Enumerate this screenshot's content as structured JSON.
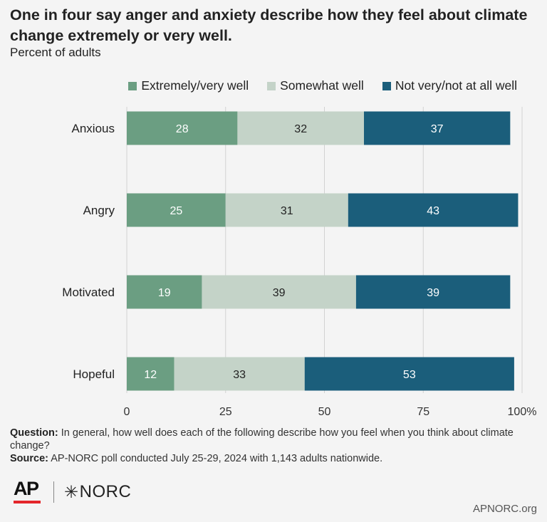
{
  "header": {
    "title": "One in four say anger and anxiety describe how they feel about climate change extremely or very well.",
    "subtitle": "Percent of adults"
  },
  "legend": {
    "items": [
      {
        "label": "Extremely/very well",
        "color": "#6b9e82"
      },
      {
        "label": "Somewhat well",
        "color": "#c4d3c8"
      },
      {
        "label": "Not very/not at all well",
        "color": "#1b5e7b"
      }
    ]
  },
  "chart_data": {
    "type": "bar",
    "orientation": "horizontal",
    "stacked": true,
    "categories": [
      "Anxious",
      "Angry",
      "Motivated",
      "Hopeful"
    ],
    "series": [
      {
        "name": "Extremely/very well",
        "values": [
          28,
          25,
          19,
          12
        ],
        "color": "#6b9e82",
        "label_color": "#ffffff"
      },
      {
        "name": "Somewhat well",
        "values": [
          32,
          31,
          39,
          33
        ],
        "color": "#c4d3c8",
        "label_color": "#222222"
      },
      {
        "name": "Not very/not at all well",
        "values": [
          37,
          43,
          39,
          53
        ],
        "color": "#1b5e7b",
        "label_color": "#ffffff"
      }
    ],
    "xlim": [
      0,
      100
    ],
    "xticks": [
      "0",
      "25",
      "50",
      "75",
      "100%"
    ],
    "xtick_values": [
      0,
      25,
      50,
      75,
      100
    ],
    "grid": true,
    "legend_position": "top-right"
  },
  "footer": {
    "question_label": "Question:",
    "question_text": "In general, how well does each of the following describe how you feel when you think about climate change?",
    "source_label": "Source:",
    "source_text": "AP-NORC poll conducted July 25-29, 2024 with 1,143 adults nationwide.",
    "logo_ap": "AP",
    "logo_norc": "NORC",
    "site": "APNORC.org"
  }
}
